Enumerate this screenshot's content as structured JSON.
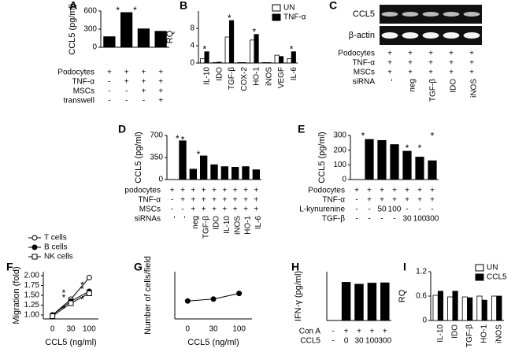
{
  "chart_data": [
    {
      "type": "bar",
      "label": "A",
      "ylabel": "CCL5 (pg/ml)",
      "values": [
        180,
        580,
        310,
        270
      ],
      "color": "#000000",
      "ylim": [
        0,
        600
      ],
      "yticks": [
        0,
        300,
        600
      ],
      "annotations": [
        "*",
        "*"
      ],
      "conditions": [
        {
          "label": "Podocytes",
          "signs": [
            "+",
            "+",
            "+",
            "+"
          ]
        },
        {
          "label": "TNF-α",
          "signs": [
            "-",
            "+",
            "+",
            "+"
          ]
        },
        {
          "label": "MSCs",
          "signs": [
            "-",
            "-",
            "+",
            "+"
          ]
        },
        {
          "label": "transwell",
          "signs": [
            "-",
            "-",
            "-",
            "+"
          ]
        }
      ]
    },
    {
      "type": "bar",
      "label": "B",
      "ylabel": "RQ",
      "categories": [
        "IL-10",
        "IDO",
        "TGF-β",
        "COX-2",
        "HO-1",
        "iNOS",
        "VEGF",
        "IL-6"
      ],
      "series": [
        {
          "name": "UN",
          "color": "#ffffff",
          "values": [
            1,
            0.1,
            6,
            0.1,
            5.3,
            0.1,
            1.8,
            1
          ]
        },
        {
          "name": "TNF-α",
          "color": "#000000",
          "values": [
            2.6,
            0.2,
            9.8,
            0.1,
            6.6,
            0.1,
            1.5,
            2.6
          ]
        }
      ],
      "ylim": [
        0,
        12
      ],
      "yticks": [
        0,
        4,
        8
      ],
      "legend": "upper right",
      "annotations": [
        "*",
        "*",
        "*",
        "*"
      ]
    },
    {
      "type": "gel",
      "label": "C",
      "bands": [
        "CCL5",
        "β-actin"
      ],
      "conditions": [
        {
          "label": "Podocytes",
          "signs": [
            "+",
            "+",
            "+",
            "+",
            "+"
          ]
        },
        {
          "label": "TNF-α",
          "signs": [
            "+",
            "+",
            "+",
            "+",
            "+"
          ]
        },
        {
          "label": "MSCs",
          "signs": [
            "+",
            "+",
            "+",
            "+",
            "+"
          ]
        },
        {
          "label": "siRNA",
          "signs": [
            "-",
            "neg",
            "TGF-β",
            "IDO",
            "iNOS"
          ]
        }
      ]
    },
    {
      "type": "bar",
      "label": "D",
      "ylabel": "CCL5 (pg/ml)",
      "values": [
        5,
        620,
        170,
        380,
        240,
        210,
        200,
        210,
        160
      ],
      "color": "#000000",
      "ylim": [
        0,
        700
      ],
      "yticks": [
        0,
        350,
        700
      ],
      "annotations": [
        "*",
        "*",
        "*"
      ],
      "conditions": [
        {
          "label": "podocytes",
          "signs": [
            "+",
            "+",
            "+",
            "+",
            "+",
            "+",
            "+",
            "+",
            "+"
          ]
        },
        {
          "label": "TNF-α",
          "signs": [
            "-",
            "+",
            "+",
            "+",
            "+",
            "+",
            "+",
            "+",
            "+"
          ]
        },
        {
          "label": "MSCs",
          "signs": [
            "-",
            "-",
            "+",
            "+",
            "+",
            "+",
            "+",
            "+",
            "+"
          ]
        },
        {
          "label": "siRNAs",
          "signs": [
            "-",
            "-",
            "neg",
            "TGF-β",
            "IDO",
            "IL-10",
            "iNOS",
            "HO-1",
            "IL-6"
          ]
        }
      ]
    },
    {
      "type": "bar",
      "label": "E",
      "ylabel": "CCL5 (pg/ml)",
      "values": [
        2,
        275,
        268,
        240,
        195,
        155,
        130
      ],
      "color": "#000000",
      "ylim": [
        0,
        300
      ],
      "yticks": [
        0,
        100,
        200,
        300
      ],
      "annotations": [
        "*",
        "*",
        "*",
        "*"
      ],
      "conditions": [
        {
          "label": "Podocytes",
          "signs": [
            "+",
            "+",
            "+",
            "+",
            "+",
            "+",
            "+"
          ]
        },
        {
          "label": "TNF-α",
          "signs": [
            "-",
            "+",
            "+",
            "+",
            "+",
            "+",
            "+"
          ]
        },
        {
          "label": "L-kynurenine",
          "signs": [
            "-",
            "-",
            "50",
            "100",
            "-",
            "-",
            "-"
          ]
        },
        {
          "label": "TGF-β",
          "signs": [
            "-",
            "-",
            "-",
            "-",
            "30",
            "100",
            "300"
          ]
        }
      ]
    },
    {
      "type": "line",
      "label": "F",
      "ylabel": "Migration (fold)",
      "xlabel": "CCL5 (ng/ml)",
      "categories": [
        "0",
        "30",
        "100"
      ],
      "series": [
        {
          "name": "T cells",
          "color": "#000000",
          "marker": "open-circle",
          "values": [
            1.0,
            1.4,
            1.95
          ]
        },
        {
          "name": "B cells",
          "color": "#000000",
          "marker": "filled-circle",
          "values": [
            1.0,
            1.35,
            1.6
          ]
        },
        {
          "name": "NK cells",
          "color": "#000000",
          "marker": "open-square",
          "values": [
            0.97,
            1.3,
            1.55
          ]
        }
      ],
      "ylim": [
        0.9,
        2.1
      ],
      "yticks": [
        {
          "value": 1,
          "label": "1.00"
        },
        {
          "value": 1.25,
          "label": "1.25"
        },
        {
          "value": 1.5,
          "label": "1.50"
        },
        {
          "value": 1.75,
          "label": "1.75"
        },
        {
          "value": 2,
          "label": "2.00"
        }
      ],
      "legend": "upper left",
      "annotations": [
        "*",
        "*",
        "*",
        "*",
        "*",
        "*"
      ]
    },
    {
      "type": "line",
      "label": "G",
      "ylabel": "Number of cells/field",
      "xlabel": "CCL5 (ng/ml)",
      "categories": [
        "0",
        "30",
        "100"
      ],
      "series": [
        {
          "color": "#000000",
          "marker": "filled-circle",
          "values": [
            19,
            21,
            27
          ]
        }
      ],
      "ylim": [
        0,
        50
      ]
    },
    {
      "type": "bar",
      "label": "H",
      "ylabel": "IFN-γ (pg/ml)",
      "values": [
        0,
        1420,
        1350,
        1390,
        1400
      ],
      "color": "#000000",
      "ylim": [
        0,
        1800
      ],
      "conditions": [
        {
          "label": "Con A",
          "signs": [
            "-",
            "+",
            "+",
            "+",
            "+"
          ]
        },
        {
          "label": "CCL5",
          "signs": [
            "-",
            "0",
            "30",
            "100",
            "300"
          ]
        }
      ]
    },
    {
      "type": "bar",
      "label": "I",
      "ylabel": "RQ",
      "categories": [
        "IL-10",
        "IDO",
        "TGF-β",
        "HO-1",
        "iNOS"
      ],
      "series": [
        {
          "name": "UN",
          "color": "#ffffff",
          "values": [
            0.62,
            0.58,
            0.58,
            0.6,
            0.6
          ]
        },
        {
          "name": "CCL5",
          "color": "#000000",
          "values": [
            0.72,
            0.72,
            0.56,
            0.5,
            0.6
          ]
        }
      ],
      "ylim": [
        0,
        1.2
      ],
      "yticks": [
        0,
        0.6,
        1.2
      ],
      "legend": "upper right"
    }
  ]
}
